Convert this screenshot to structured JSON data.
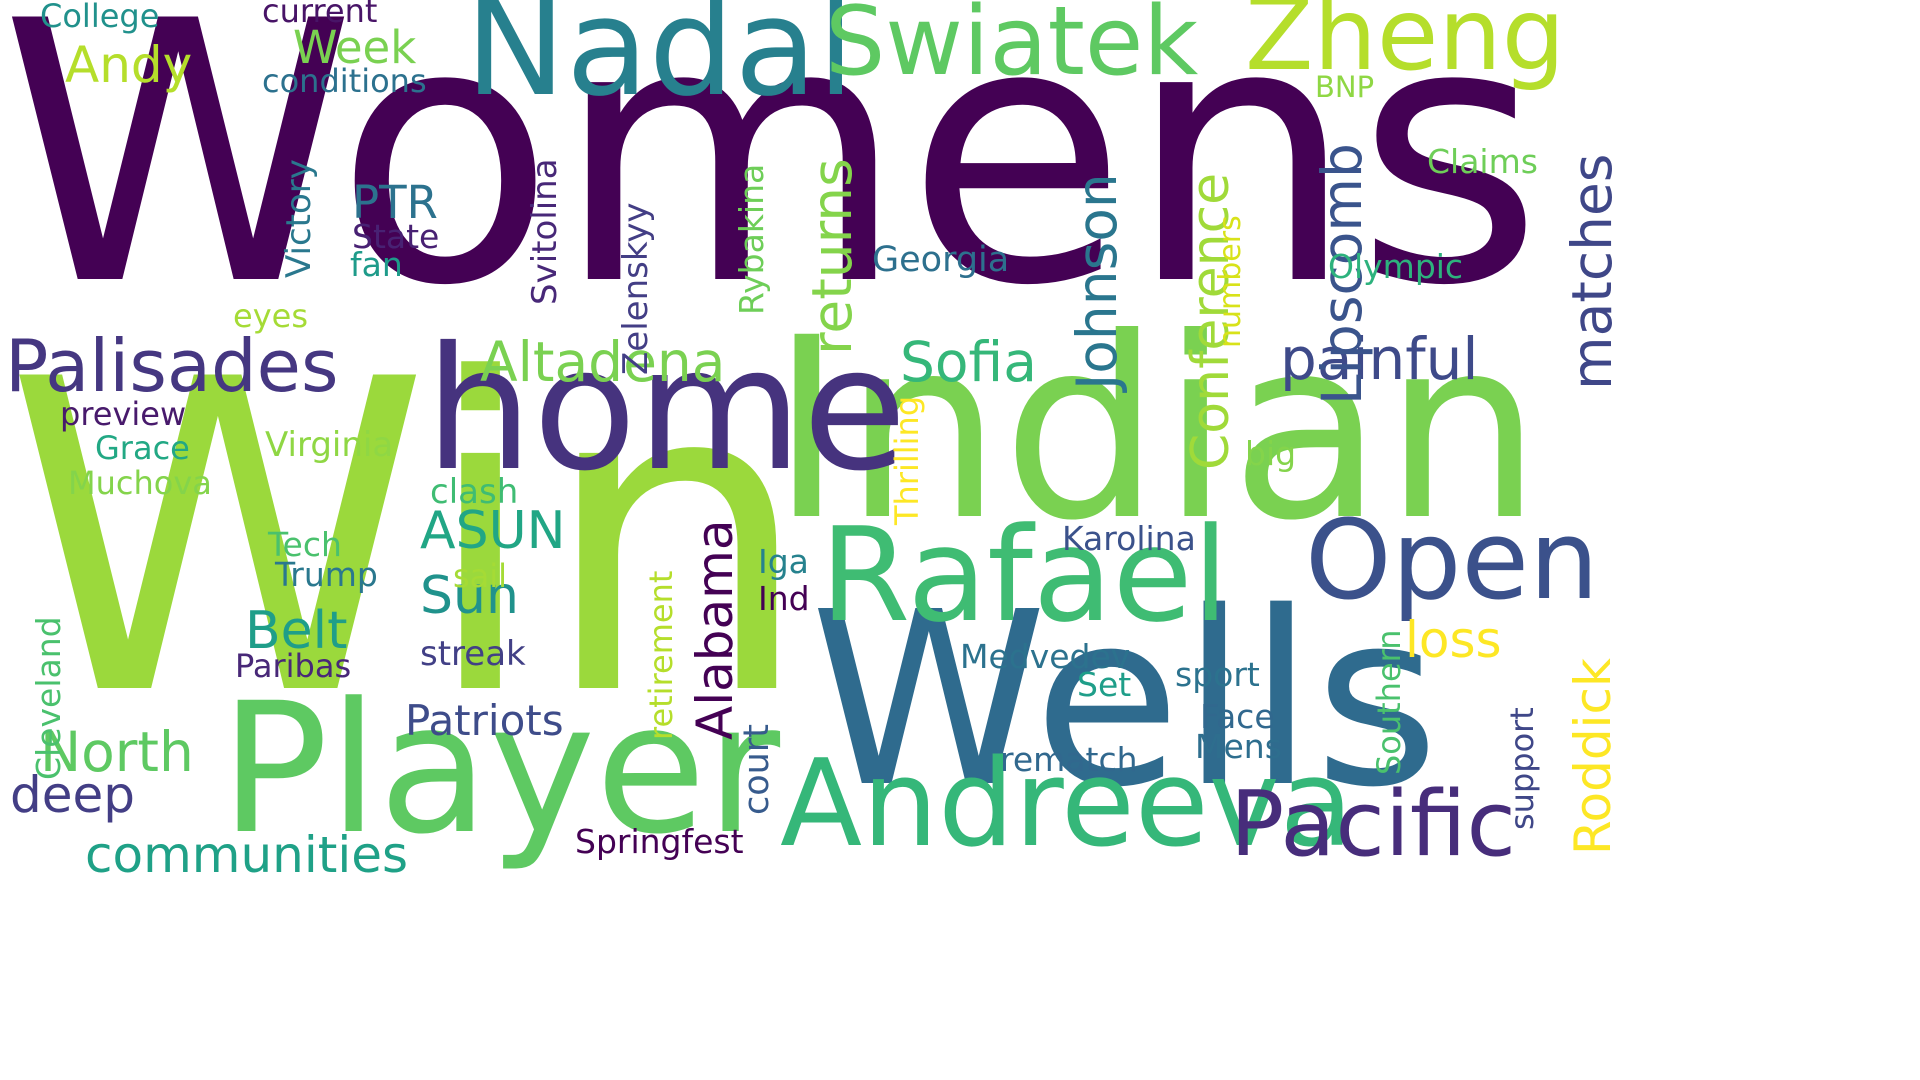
{
  "words": [
    {
      "text": "Womens",
      "color": "#440154",
      "vertical": false
    },
    {
      "text": "Win",
      "color": "#9bd93c",
      "vertical": false
    },
    {
      "text": "Indian",
      "color": "#7ad151",
      "vertical": false
    },
    {
      "text": "Wells",
      "color": "#2f6b8e",
      "vertical": false
    },
    {
      "text": "Player",
      "color": "#5ec962",
      "vertical": false
    },
    {
      "text": "home",
      "color": "#46337e",
      "vertical": false
    },
    {
      "text": "Rafael",
      "color": "#3fbc73",
      "vertical": false
    },
    {
      "text": "Nadal",
      "color": "#27808e",
      "vertical": false
    },
    {
      "text": "Swiatek",
      "color": "#5ec962",
      "vertical": false
    },
    {
      "text": "Zheng",
      "color": "#b5de2b",
      "vertical": false
    },
    {
      "text": "Andreeva",
      "color": "#35b779",
      "vertical": false
    },
    {
      "text": "Open",
      "color": "#3b518b",
      "vertical": false
    },
    {
      "text": "Pacific",
      "color": "#472d7b",
      "vertical": false
    },
    {
      "text": "Palisades",
      "color": "#453781",
      "vertical": false
    },
    {
      "text": "Altadena",
      "color": "#7ad151",
      "vertical": false
    },
    {
      "text": "Sofia",
      "color": "#35b779",
      "vertical": false
    },
    {
      "text": "painful",
      "color": "#3e4a89",
      "vertical": false
    },
    {
      "text": "Johnson",
      "color": "#2a768e",
      "vertical": true
    },
    {
      "text": "Lipscomb",
      "color": "#3a548c",
      "vertical": true
    },
    {
      "text": "matches",
      "color": "#3f4788",
      "vertical": true
    },
    {
      "text": "returns",
      "color": "#84d44b",
      "vertical": true
    },
    {
      "text": "Conference",
      "color": "#a0da39",
      "vertical": true
    },
    {
      "text": "Alabama",
      "color": "#440154",
      "vertical": true
    },
    {
      "text": "Roddick",
      "color": "#fde725",
      "vertical": true
    },
    {
      "text": "loss",
      "color": "#fde725",
      "vertical": false
    },
    {
      "text": "North",
      "color": "#5ec962",
      "vertical": false
    },
    {
      "text": "deep",
      "color": "#433e85",
      "vertical": false
    },
    {
      "text": "communities",
      "color": "#1fa187",
      "vertical": false
    },
    {
      "text": "ASUN",
      "color": "#21a685",
      "vertical": false
    },
    {
      "text": "Sun",
      "color": "#20928c",
      "vertical": false
    },
    {
      "text": "Belt",
      "color": "#1f9e89",
      "vertical": false
    },
    {
      "text": "Patriots",
      "color": "#3e4c8a",
      "vertical": false
    },
    {
      "text": "Andy",
      "color": "#b5de2b",
      "vertical": false
    },
    {
      "text": "Week",
      "color": "#7ad151",
      "vertical": false
    },
    {
      "text": "College",
      "color": "#21918c",
      "vertical": false
    },
    {
      "text": "current",
      "color": "#481467",
      "vertical": false
    },
    {
      "text": "conditions",
      "color": "#2c718e",
      "vertical": false
    },
    {
      "text": "PTR",
      "color": "#2c728e",
      "vertical": false
    },
    {
      "text": "State",
      "color": "#482173",
      "vertical": false
    },
    {
      "text": "fan",
      "color": "#1e9b8a",
      "vertical": false
    },
    {
      "text": "eyes",
      "color": "#a5db36",
      "vertical": false
    },
    {
      "text": "preview",
      "color": "#481a6c",
      "vertical": false
    },
    {
      "text": "Grace",
      "color": "#22a884",
      "vertical": false
    },
    {
      "text": "Muchova",
      "color": "#84d44b",
      "vertical": false
    },
    {
      "text": "Virginia",
      "color": "#8fd744",
      "vertical": false
    },
    {
      "text": "clash",
      "color": "#3fbc73",
      "vertical": false
    },
    {
      "text": "Tech",
      "color": "#4ac16d",
      "vertical": false
    },
    {
      "text": "Trump",
      "color": "#2a788e",
      "vertical": false
    },
    {
      "text": "sail",
      "color": "#a5db36",
      "vertical": false
    },
    {
      "text": "Paribas",
      "color": "#482878",
      "vertical": false
    },
    {
      "text": "streak",
      "color": "#424086",
      "vertical": false
    },
    {
      "text": "Victory",
      "color": "#2a788e",
      "vertical": true
    },
    {
      "text": "Svitolina",
      "color": "#482878",
      "vertical": true
    },
    {
      "text": "Zelenskyy",
      "color": "#433e85",
      "vertical": true
    },
    {
      "text": "Rybakina",
      "color": "#6ece58",
      "vertical": true
    },
    {
      "text": "Thrilling",
      "color": "#fde725",
      "vertical": true
    },
    {
      "text": "numbers",
      "color": "#d8e219",
      "vertical": true
    },
    {
      "text": "retirement",
      "color": "#b5de2b",
      "vertical": true
    },
    {
      "text": "court",
      "color": "#375b8d",
      "vertical": true
    },
    {
      "text": "Cleveland",
      "color": "#4ac16d",
      "vertical": true
    },
    {
      "text": "Southern",
      "color": "#4ac16d",
      "vertical": true
    },
    {
      "text": "support",
      "color": "#3f4788",
      "vertical": true
    },
    {
      "text": "Georgia",
      "color": "#2d708e",
      "vertical": false
    },
    {
      "text": "BNP",
      "color": "#8fd744",
      "vertical": false
    },
    {
      "text": "Claims",
      "color": "#6ece58",
      "vertical": false
    },
    {
      "text": "Olympic",
      "color": "#2db27d",
      "vertical": false
    },
    {
      "text": "big",
      "color": "#84d44b",
      "vertical": false
    },
    {
      "text": "Karolina",
      "color": "#3b528b",
      "vertical": false
    },
    {
      "text": "Iga",
      "color": "#26828e",
      "vertical": false
    },
    {
      "text": "Ind",
      "color": "#440154",
      "vertical": false
    },
    {
      "text": "Medvedev",
      "color": "#2c728e",
      "vertical": false
    },
    {
      "text": "Set",
      "color": "#1f9e89",
      "vertical": false
    },
    {
      "text": "sport",
      "color": "#2c728e",
      "vertical": false
    },
    {
      "text": "Face",
      "color": "#31688e",
      "vertical": false
    },
    {
      "text": "Mens",
      "color": "#2e6e8e",
      "vertical": false
    },
    {
      "text": "rematch",
      "color": "#31688e",
      "vertical": false
    },
    {
      "text": "Springfest",
      "color": "#440154",
      "vertical": false
    }
  ]
}
